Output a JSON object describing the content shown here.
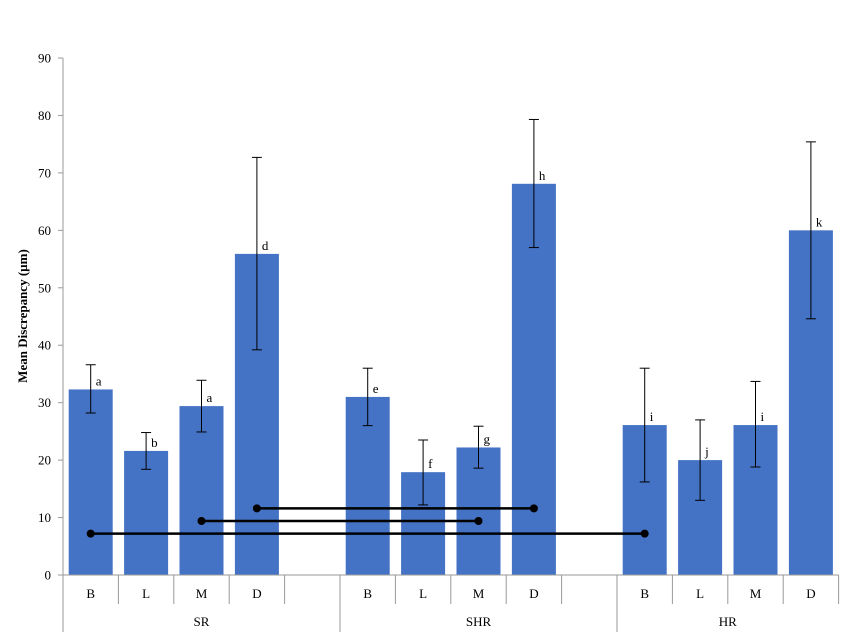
{
  "chart_data": {
    "type": "bar",
    "title": "",
    "ylabel": "Mean Discrepancy (µm)",
    "xlabel": "",
    "ylim": [
      0,
      90
    ],
    "yticks": [
      0,
      10,
      20,
      30,
      40,
      50,
      60,
      70,
      80,
      90
    ],
    "grid": false,
    "bar_color": "#4472C4",
    "groups": [
      {
        "name": "SR",
        "bars": [
          {
            "category": "B",
            "value": 32.3,
            "err_low": 28.2,
            "err_high": 36.6,
            "letter": "a"
          },
          {
            "category": "L",
            "value": 21.6,
            "err_low": 18.4,
            "err_high": 24.8,
            "letter": "b"
          },
          {
            "category": "M",
            "value": 29.4,
            "err_low": 24.9,
            "err_high": 33.9,
            "letter": "a"
          },
          {
            "category": "D",
            "value": 55.9,
            "err_low": 39.2,
            "err_high": 72.7,
            "letter": "d"
          }
        ]
      },
      {
        "name": "SHR",
        "bars": [
          {
            "category": "B",
            "value": 31.0,
            "err_low": 26.0,
            "err_high": 36.0,
            "letter": "e"
          },
          {
            "category": "L",
            "value": 17.9,
            "err_low": 12.2,
            "err_high": 23.5,
            "letter": "f"
          },
          {
            "category": "M",
            "value": 22.2,
            "err_low": 18.6,
            "err_high": 25.9,
            "letter": "g"
          },
          {
            "category": "D",
            "value": 68.1,
            "err_low": 57.0,
            "err_high": 79.3,
            "letter": "h"
          }
        ]
      },
      {
        "name": "HR",
        "bars": [
          {
            "category": "B",
            "value": 26.1,
            "err_low": 16.2,
            "err_high": 36.0,
            "letter": "i"
          },
          {
            "category": "L",
            "value": 20.0,
            "err_low": 13.0,
            "err_high": 27.0,
            "letter": "j"
          },
          {
            "category": "M",
            "value": 26.1,
            "err_low": 18.8,
            "err_high": 33.7,
            "letter": "i"
          },
          {
            "category": "D",
            "value": 60.0,
            "err_low": 44.6,
            "err_high": 75.4,
            "letter": "k"
          }
        ]
      }
    ],
    "connectors": [
      {
        "from": {
          "group": 0,
          "bar": 3
        },
        "to": {
          "group": 1,
          "bar": 3
        },
        "y": 11.6
      },
      {
        "from": {
          "group": 0,
          "bar": 2
        },
        "to": {
          "group": 1,
          "bar": 2
        },
        "y": 9.4
      },
      {
        "from": {
          "group": 0,
          "bar": 0
        },
        "to": {
          "group": 2,
          "bar": 0
        },
        "y": 7.2
      }
    ]
  }
}
